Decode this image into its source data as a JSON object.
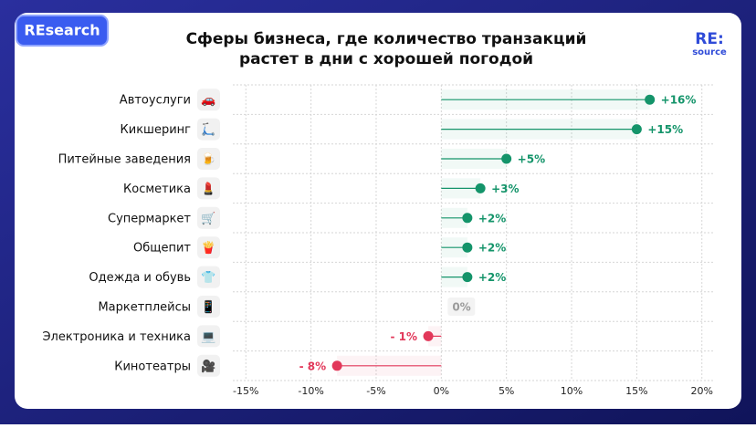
{
  "badge": "REsearch",
  "logo": {
    "top": "RE:",
    "bottom": "source"
  },
  "chart_data": {
    "type": "lollipop",
    "title": [
      "Сферы бизнеса, где количество транзакций",
      "растет в дни с хорошей погодой"
    ],
    "categories": [
      "Автоуслуги",
      "Кикшеринг",
      "Питейные заведения",
      "Косметика",
      "Супермаркет",
      "Общепит",
      "Одежда и обувь",
      "Маркетплейсы",
      "Электроника и техника",
      "Кинотеатры"
    ],
    "icons": [
      "🚗",
      "🛴",
      "🍺",
      "💄",
      "🛒",
      "🍟",
      "👕",
      "📱",
      "💻",
      "🎥"
    ],
    "values": [
      16,
      15,
      5,
      3,
      2,
      2,
      2,
      0,
      -1,
      -8
    ],
    "value_labels": [
      "+16%",
      "+15%",
      "+5%",
      "+3%",
      "+2%",
      "+2%",
      "+2%",
      "0%",
      "- 1%",
      "- 8%"
    ],
    "color": "#14946a",
    "negative_color": "#e2385a",
    "xlim": [
      -16,
      21
    ],
    "xticks": [
      {
        "value": -15,
        "label": "-15%"
      },
      {
        "value": -10,
        "label": "-10%"
      },
      {
        "value": -5,
        "label": "-5%"
      },
      {
        "value": 0,
        "label": "0%"
      },
      {
        "value": 5,
        "label": "5%"
      },
      {
        "value": 10,
        "label": "10%"
      },
      {
        "value": 15,
        "label": "15%"
      },
      {
        "value": 20,
        "label": "20%"
      }
    ],
    "grid": true
  }
}
